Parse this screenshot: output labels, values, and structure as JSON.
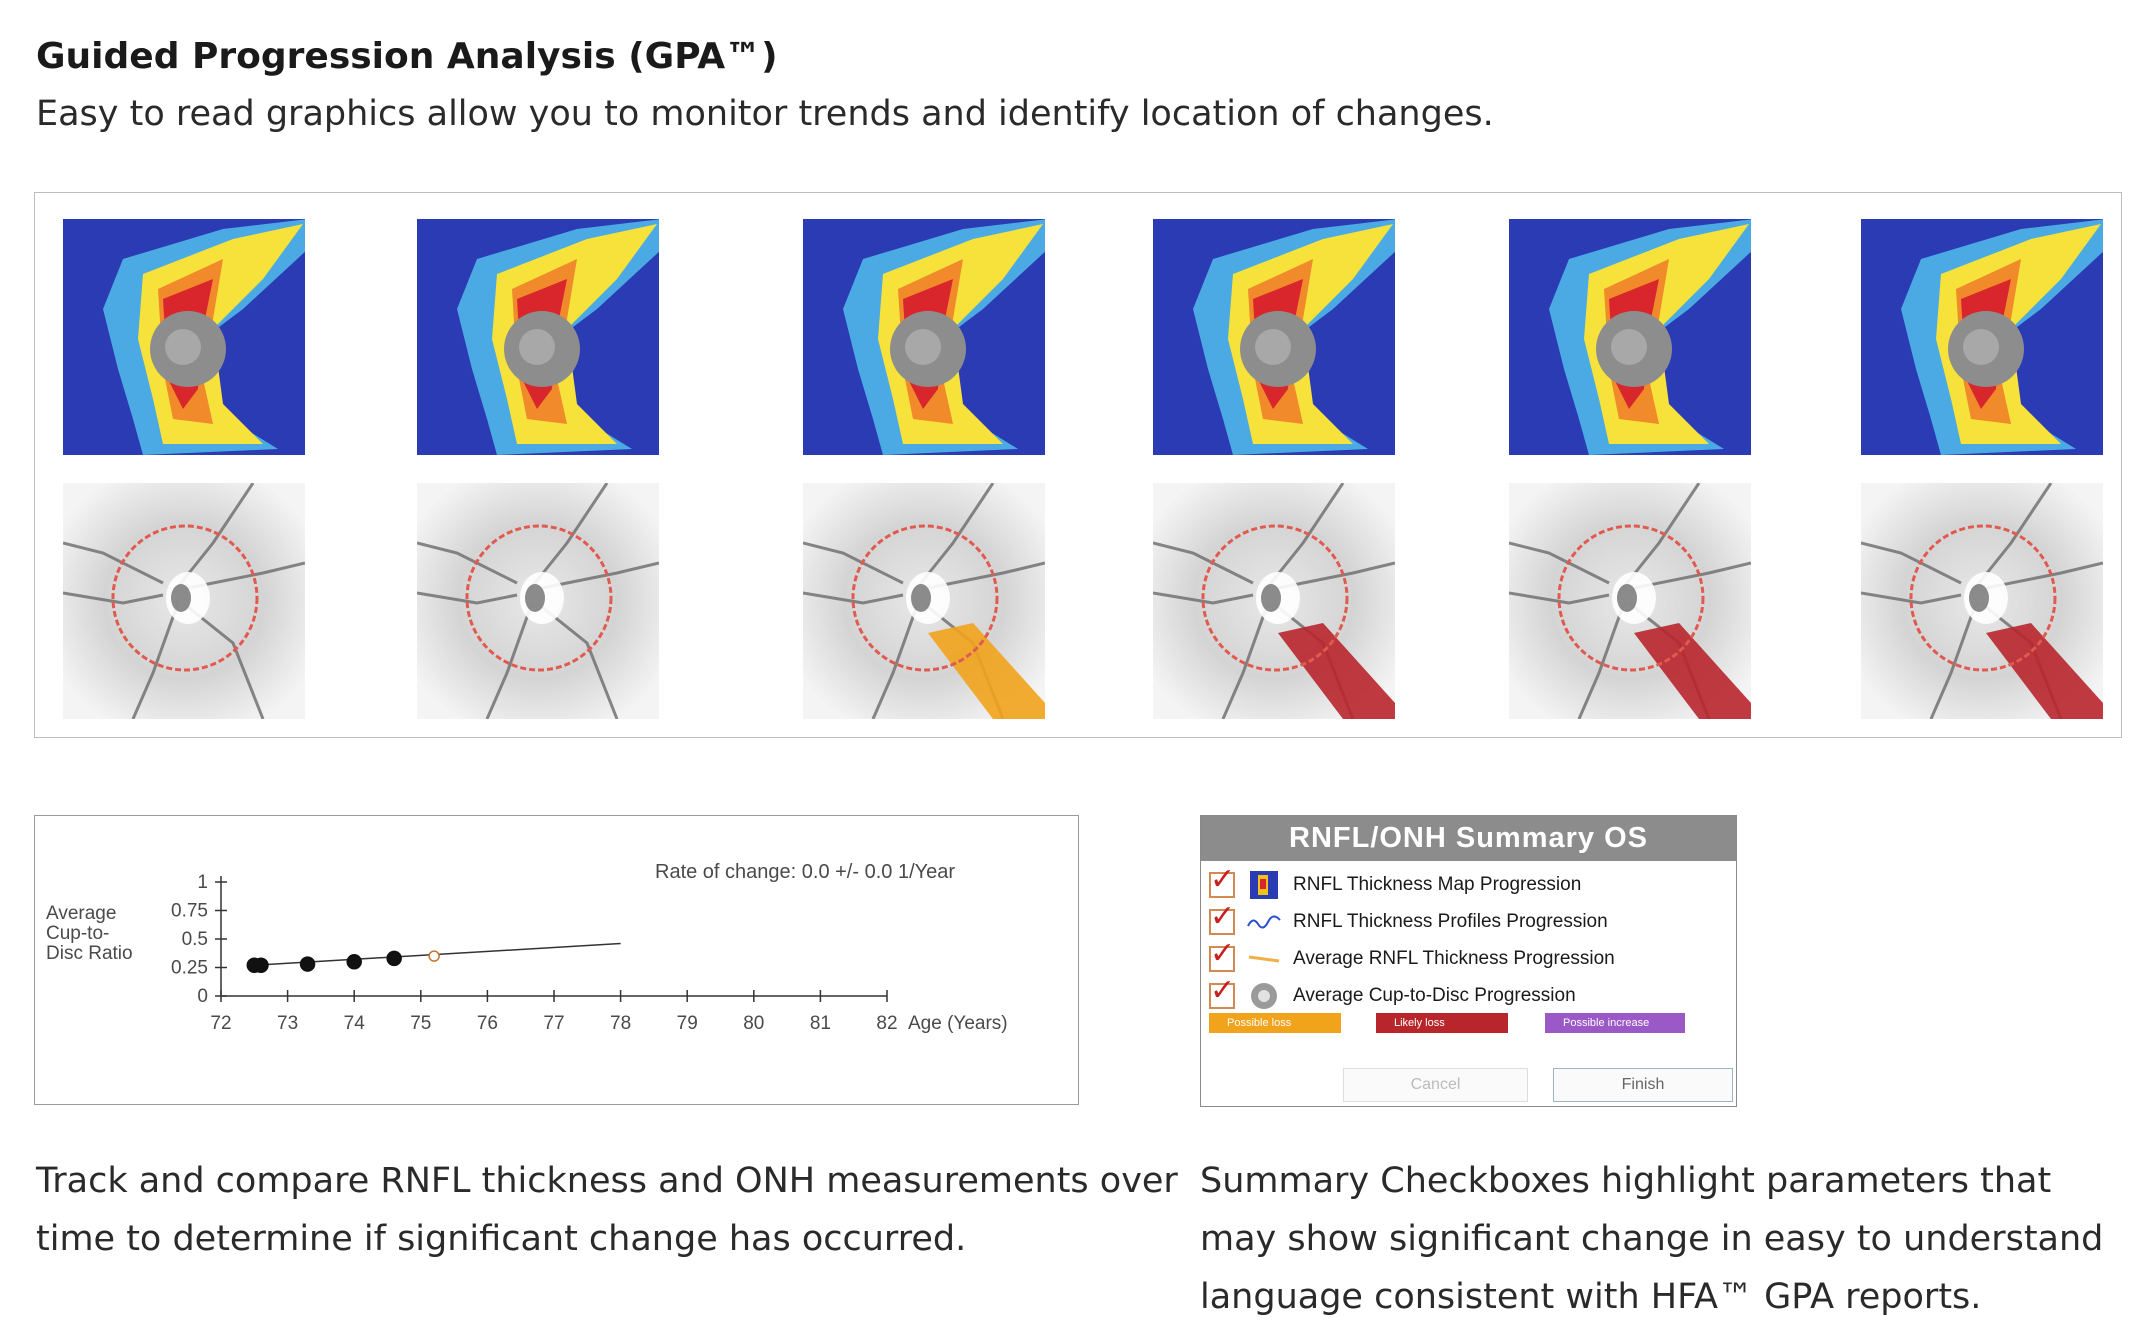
{
  "heading": "Guided Progression Analysis (GPA™)",
  "subheading": "Easy to read graphics allow you to monitor trends and identify location of changes.",
  "gallery": {
    "visits": [
      {
        "highlight": "none"
      },
      {
        "highlight": "none"
      },
      {
        "highlight": "possible-loss"
      },
      {
        "highlight": "likely-loss"
      },
      {
        "highlight": "likely-loss"
      },
      {
        "highlight": "likely-loss"
      }
    ],
    "colors": {
      "map_bg": "#2a3bb4",
      "possible_loss": "#f2a31c",
      "likely_loss": "#b8262c",
      "circle": "#e05a50"
    }
  },
  "chart_data": {
    "type": "scatter",
    "ylabel_lines": [
      "Average",
      "Cup-to-",
      "Disc Ratio"
    ],
    "xlabel": "Age (Years)",
    "annotation": "Rate of change: 0.0 +/- 0.0 1/Year",
    "xlim": [
      72,
      82
    ],
    "ylim": [
      0,
      1
    ],
    "xticks": [
      "72",
      "73",
      "74",
      "75",
      "76",
      "77",
      "78",
      "79",
      "80",
      "81",
      "82"
    ],
    "yticks": [
      "0",
      "0.25",
      "0.5",
      "0.75",
      "1"
    ],
    "points": [
      {
        "x": 72.5,
        "y": 0.27
      },
      {
        "x": 72.6,
        "y": 0.27
      },
      {
        "x": 73.3,
        "y": 0.28
      },
      {
        "x": 74.0,
        "y": 0.3
      },
      {
        "x": 74.6,
        "y": 0.33
      },
      {
        "x": 75.2,
        "y": 0.35
      }
    ],
    "trend": {
      "x0": 72.5,
      "y0": 0.27,
      "x1": 78.0,
      "y1": 0.46
    },
    "grid": false
  },
  "summary": {
    "title": "RNFL/ONH Summary OS",
    "items": [
      {
        "label": "RNFL Thickness Map Progression",
        "icon": "thickness-map-icon",
        "checked": true
      },
      {
        "label": "RNFL Thickness Profiles Progression",
        "icon": "profile-wave-icon",
        "checked": true
      },
      {
        "label": "Average RNFL Thickness Progression",
        "icon": "trend-line-icon",
        "checked": true
      },
      {
        "label": "Average Cup-to-Disc Progression",
        "icon": "disc-icon",
        "checked": true
      }
    ],
    "legend": [
      {
        "label": "Possible loss",
        "color": "#f2a31c"
      },
      {
        "label": "Likely loss",
        "color": "#b8262c"
      },
      {
        "label": "Possible increase",
        "color": "#9b59c8"
      }
    ],
    "buttons": {
      "cancel": "Cancel",
      "finish": "Finish"
    }
  },
  "captions": {
    "left": [
      "Track and compare RNFL thickness and ONH measurements over",
      "time to determine if significant change has occurred."
    ],
    "right": [
      "Summary Checkboxes highlight parameters that",
      "may show significant change in easy to understand",
      "language consistent with HFA™ GPA reports."
    ]
  }
}
